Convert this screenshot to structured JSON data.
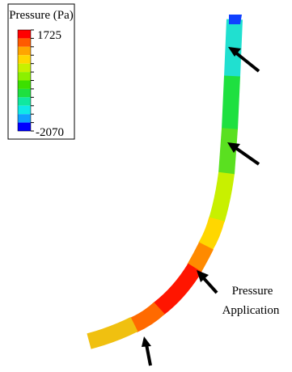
{
  "legend": {
    "title": "Pressure (Pa)",
    "max": 1725,
    "min": -2070,
    "colors": [
      "#ff0000",
      "#ff5a00",
      "#ffa500",
      "#ffd700",
      "#c8f000",
      "#8cf000",
      "#3ce000",
      "#1ee040",
      "#10e8a0",
      "#10e8e8",
      "#10a0ff",
      "#0000ff"
    ]
  },
  "annotation": {
    "lines": [
      "Pressure",
      "Application"
    ]
  }
}
